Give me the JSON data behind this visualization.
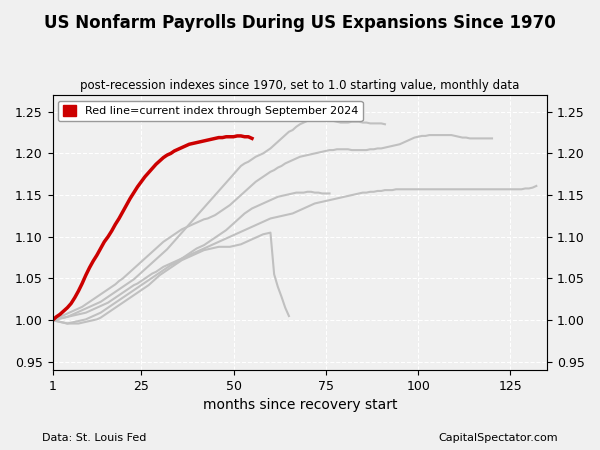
{
  "title": "US Nonfarm Payrolls During US Expansions Since 1970",
  "subtitle": "post-recession indexes since 1970, set to 1.0 starting value, monthly data",
  "xlabel": "months since recovery start",
  "ylabel_left": "",
  "ylabel_right": "",
  "footer_left": "Data: St. Louis Fed",
  "footer_right": "CapitalSpectator.com",
  "legend_label": "Red line=current index through September 2024",
  "xlim": [
    1,
    135
  ],
  "ylim": [
    0.94,
    1.27
  ],
  "yticks": [
    0.95,
    1.0,
    1.05,
    1.1,
    1.15,
    1.2,
    1.25
  ],
  "xticks": [
    1,
    25,
    50,
    75,
    100,
    125
  ],
  "background_color": "#f0f0f0",
  "grid_color": "#ffffff",
  "red_line_color": "#cc0000",
  "gray_line_color": "#c0c0c0",
  "red_line": {
    "x": [
      1,
      2,
      3,
      4,
      5,
      6,
      7,
      8,
      9,
      10,
      11,
      12,
      13,
      14,
      15,
      16,
      17,
      18,
      19,
      20,
      21,
      22,
      23,
      24,
      25,
      26,
      27,
      28,
      29,
      30,
      31,
      32,
      33,
      34,
      35,
      36,
      37,
      38,
      39,
      40,
      41,
      42,
      43,
      44,
      45,
      46,
      47,
      48,
      49,
      50,
      51,
      52,
      53,
      54,
      55
    ],
    "y": [
      1.0,
      1.004,
      1.007,
      1.011,
      1.015,
      1.02,
      1.027,
      1.035,
      1.044,
      1.054,
      1.063,
      1.071,
      1.078,
      1.086,
      1.094,
      1.1,
      1.107,
      1.115,
      1.122,
      1.13,
      1.138,
      1.146,
      1.153,
      1.16,
      1.166,
      1.172,
      1.177,
      1.182,
      1.187,
      1.191,
      1.195,
      1.198,
      1.2,
      1.203,
      1.205,
      1.207,
      1.209,
      1.211,
      1.212,
      1.213,
      1.214,
      1.215,
      1.216,
      1.217,
      1.218,
      1.219,
      1.219,
      1.22,
      1.22,
      1.22,
      1.221,
      1.221,
      1.22,
      1.22,
      1.218
    ]
  },
  "gray_lines": [
    {
      "x": [
        1,
        2,
        3,
        4,
        5,
        6,
        7,
        8,
        9,
        10,
        11,
        12,
        13,
        14,
        15,
        16,
        17,
        18,
        19,
        20,
        21,
        22,
        23,
        24,
        25,
        26,
        27,
        28,
        29,
        30,
        31,
        32,
        33,
        34,
        35,
        36,
        37,
        38,
        39,
        40,
        41,
        42,
        43,
        44,
        45,
        46,
        47,
        48,
        49,
        50,
        51,
        52,
        53,
        54,
        55,
        56,
        57,
        58,
        59,
        60,
        61,
        62,
        63,
        64,
        65,
        66,
        67,
        68,
        69,
        70,
        71,
        72,
        73,
        74,
        75,
        76,
        77,
        78,
        79,
        80,
        81,
        82,
        83,
        84,
        85,
        86,
        87,
        88,
        89,
        90,
        91,
        92,
        93,
        94,
        95,
        96,
        97,
        98,
        99,
        100,
        101,
        102,
        103,
        104,
        105,
        106,
        107,
        108,
        109,
        110,
        111,
        112,
        113,
        114,
        115,
        116,
        117,
        118,
        119,
        120
      ],
      "y": [
        1.0,
        1.002,
        1.004,
        1.006,
        1.008,
        1.01,
        1.012,
        1.014,
        1.016,
        1.019,
        1.022,
        1.025,
        1.028,
        1.031,
        1.034,
        1.037,
        1.04,
        1.043,
        1.047,
        1.05,
        1.054,
        1.058,
        1.062,
        1.066,
        1.07,
        1.074,
        1.078,
        1.082,
        1.086,
        1.09,
        1.094,
        1.097,
        1.1,
        1.103,
        1.106,
        1.109,
        1.111,
        1.113,
        1.115,
        1.117,
        1.119,
        1.121,
        1.122,
        1.124,
        1.126,
        1.129,
        1.132,
        1.135,
        1.138,
        1.142,
        1.146,
        1.15,
        1.154,
        1.158,
        1.162,
        1.166,
        1.169,
        1.172,
        1.175,
        1.178,
        1.18,
        1.183,
        1.185,
        1.188,
        1.19,
        1.192,
        1.194,
        1.196,
        1.197,
        1.198,
        1.199,
        1.2,
        1.201,
        1.202,
        1.203,
        1.204,
        1.204,
        1.205,
        1.205,
        1.205,
        1.205,
        1.204,
        1.204,
        1.204,
        1.204,
        1.204,
        1.205,
        1.205,
        1.206,
        1.206,
        1.207,
        1.208,
        1.209,
        1.21,
        1.211,
        1.213,
        1.215,
        1.217,
        1.219,
        1.22,
        1.221,
        1.221,
        1.222,
        1.222,
        1.222,
        1.222,
        1.222,
        1.222,
        1.222,
        1.221,
        1.22,
        1.219,
        1.219,
        1.218,
        1.218,
        1.218,
        1.218,
        1.218,
        1.218,
        1.218
      ]
    },
    {
      "x": [
        1,
        2,
        3,
        4,
        5,
        6,
        7,
        8,
        9,
        10,
        11,
        12,
        13,
        14,
        15,
        16,
        17,
        18,
        19,
        20,
        21,
        22,
        23,
        24,
        25,
        26,
        27,
        28,
        29,
        30,
        31,
        32,
        33,
        34,
        35,
        36,
        37,
        38,
        39,
        40,
        41,
        42,
        43,
        44,
        45,
        46,
        47,
        48,
        49,
        50,
        51,
        52,
        53,
        54,
        55,
        56,
        57,
        58,
        59,
        60,
        61,
        62,
        63,
        64,
        65,
        66,
        67,
        68,
        69,
        70,
        71,
        72,
        73,
        74,
        75,
        76,
        77,
        78,
        79,
        80,
        81,
        82,
        83,
        84,
        85,
        86,
        87,
        88,
        89,
        90,
        91,
        92,
        93,
        94,
        95,
        96,
        97,
        98,
        99,
        100,
        101,
        102,
        103,
        104,
        105,
        106,
        107,
        108,
        109,
        110,
        111,
        112,
        113,
        114,
        115,
        116,
        117,
        118,
        119,
        120,
        121,
        122,
        123,
        124,
        125,
        126,
        127,
        128,
        129,
        130,
        131,
        132
      ],
      "y": [
        1.0,
        1.001,
        1.002,
        1.003,
        1.004,
        1.005,
        1.006,
        1.007,
        1.008,
        1.009,
        1.011,
        1.013,
        1.015,
        1.017,
        1.019,
        1.021,
        1.024,
        1.027,
        1.03,
        1.033,
        1.036,
        1.039,
        1.042,
        1.044,
        1.047,
        1.05,
        1.053,
        1.056,
        1.058,
        1.061,
        1.064,
        1.066,
        1.068,
        1.07,
        1.072,
        1.074,
        1.076,
        1.078,
        1.08,
        1.082,
        1.084,
        1.086,
        1.088,
        1.09,
        1.092,
        1.094,
        1.096,
        1.098,
        1.1,
        1.102,
        1.104,
        1.106,
        1.108,
        1.11,
        1.112,
        1.114,
        1.116,
        1.118,
        1.12,
        1.122,
        1.123,
        1.124,
        1.125,
        1.126,
        1.127,
        1.128,
        1.13,
        1.132,
        1.134,
        1.136,
        1.138,
        1.14,
        1.141,
        1.142,
        1.143,
        1.144,
        1.145,
        1.146,
        1.147,
        1.148,
        1.149,
        1.15,
        1.151,
        1.152,
        1.153,
        1.153,
        1.154,
        1.154,
        1.155,
        1.155,
        1.156,
        1.156,
        1.156,
        1.157,
        1.157,
        1.157,
        1.157,
        1.157,
        1.157,
        1.157,
        1.157,
        1.157,
        1.157,
        1.157,
        1.157,
        1.157,
        1.157,
        1.157,
        1.157,
        1.157,
        1.157,
        1.157,
        1.157,
        1.157,
        1.157,
        1.157,
        1.157,
        1.157,
        1.157,
        1.157,
        1.157,
        1.157,
        1.157,
        1.157,
        1.157,
        1.157,
        1.157,
        1.157,
        1.158,
        1.158,
        1.159,
        1.161
      ]
    },
    {
      "x": [
        1,
        2,
        3,
        4,
        5,
        6,
        7,
        8,
        9,
        10,
        11,
        12,
        13,
        14,
        15,
        16,
        17,
        18,
        19,
        20,
        21,
        22,
        23,
        24,
        25,
        26,
        27,
        28,
        29,
        30,
        31,
        32,
        33,
        34,
        35,
        36,
        37,
        38,
        39,
        40,
        41,
        42,
        43,
        44,
        45,
        46,
        47,
        48,
        49,
        50,
        51,
        52,
        53,
        54,
        55,
        56,
        57,
        58,
        59,
        60,
        61,
        62,
        63,
        64,
        65,
        66,
        67,
        68,
        69,
        70,
        71,
        72,
        73,
        74,
        75,
        76,
        77,
        78,
        79,
        80,
        81,
        82,
        83,
        84,
        85,
        86,
        87,
        88,
        89,
        90,
        91
      ],
      "y": [
        1.0,
        1.001,
        1.002,
        1.003,
        1.004,
        1.006,
        1.008,
        1.01,
        1.012,
        1.014,
        1.016,
        1.018,
        1.02,
        1.022,
        1.025,
        1.028,
        1.031,
        1.034,
        1.037,
        1.04,
        1.043,
        1.046,
        1.049,
        1.053,
        1.057,
        1.061,
        1.065,
        1.069,
        1.073,
        1.077,
        1.081,
        1.085,
        1.09,
        1.095,
        1.1,
        1.105,
        1.11,
        1.115,
        1.12,
        1.125,
        1.13,
        1.135,
        1.14,
        1.145,
        1.15,
        1.155,
        1.16,
        1.165,
        1.17,
        1.175,
        1.18,
        1.185,
        1.188,
        1.19,
        1.193,
        1.196,
        1.198,
        1.2,
        1.203,
        1.206,
        1.21,
        1.214,
        1.218,
        1.222,
        1.226,
        1.228,
        1.232,
        1.235,
        1.237,
        1.239,
        1.24,
        1.241,
        1.241,
        1.241,
        1.241,
        1.24,
        1.239,
        1.238,
        1.237,
        1.237,
        1.237,
        1.238,
        1.238,
        1.238,
        1.237,
        1.237,
        1.236,
        1.236,
        1.236,
        1.236,
        1.235
      ]
    },
    {
      "x": [
        1,
        2,
        3,
        4,
        5,
        6,
        7,
        8,
        9,
        10,
        11,
        12,
        13,
        14,
        15,
        16,
        17,
        18,
        19,
        20,
        21,
        22,
        23,
        24,
        25,
        26,
        27,
        28,
        29,
        30,
        31,
        32,
        33,
        34,
        35,
        36,
        37,
        38,
        39,
        40,
        41,
        42,
        43,
        44,
        45,
        46,
        47,
        48,
        49,
        50,
        51,
        52,
        53,
        54,
        55,
        56,
        57,
        58,
        59,
        60,
        61,
        62,
        63,
        64,
        65,
        66,
        67,
        68,
        69,
        70,
        71,
        72,
        73,
        74,
        75,
        76
      ],
      "y": [
        1.0,
        0.999,
        0.998,
        0.997,
        0.996,
        0.997,
        0.998,
        0.999,
        1.0,
        1.001,
        1.003,
        1.005,
        1.007,
        1.009,
        1.012,
        1.015,
        1.018,
        1.021,
        1.024,
        1.027,
        1.03,
        1.033,
        1.036,
        1.039,
        1.042,
        1.045,
        1.048,
        1.051,
        1.054,
        1.057,
        1.06,
        1.063,
        1.066,
        1.068,
        1.071,
        1.074,
        1.077,
        1.08,
        1.083,
        1.086,
        1.088,
        1.09,
        1.093,
        1.096,
        1.099,
        1.102,
        1.105,
        1.108,
        1.112,
        1.116,
        1.12,
        1.124,
        1.128,
        1.131,
        1.134,
        1.136,
        1.138,
        1.14,
        1.142,
        1.144,
        1.146,
        1.148,
        1.149,
        1.15,
        1.151,
        1.152,
        1.153,
        1.153,
        1.153,
        1.154,
        1.154,
        1.153,
        1.153,
        1.152,
        1.152,
        1.152
      ]
    },
    {
      "x": [
        1,
        2,
        3,
        4,
        5,
        6,
        7,
        8,
        9,
        10,
        11,
        12,
        13,
        14,
        15,
        16,
        17,
        18,
        19,
        20,
        21,
        22,
        23,
        24,
        25,
        26,
        27,
        28,
        29,
        30,
        31,
        32,
        33,
        34,
        35,
        36,
        37,
        38,
        39,
        40,
        41,
        42,
        43,
        44,
        45,
        46,
        47,
        48,
        49,
        50,
        51,
        52,
        53,
        54,
        55,
        56,
        57,
        58,
        59,
        60,
        61,
        62,
        63,
        64,
        65
      ],
      "y": [
        1.0,
        0.999,
        0.998,
        0.997,
        0.996,
        0.996,
        0.996,
        0.996,
        0.997,
        0.998,
        0.999,
        1.0,
        1.001,
        1.003,
        1.006,
        1.009,
        1.012,
        1.015,
        1.018,
        1.021,
        1.024,
        1.027,
        1.03,
        1.033,
        1.036,
        1.039,
        1.042,
        1.046,
        1.05,
        1.054,
        1.057,
        1.06,
        1.063,
        1.066,
        1.069,
        1.072,
        1.074,
        1.076,
        1.078,
        1.08,
        1.082,
        1.084,
        1.085,
        1.086,
        1.087,
        1.088,
        1.088,
        1.088,
        1.088,
        1.089,
        1.09,
        1.091,
        1.093,
        1.095,
        1.097,
        1.099,
        1.101,
        1.103,
        1.104,
        1.105,
        1.055,
        1.04,
        1.028,
        1.015,
        1.005
      ]
    }
  ]
}
